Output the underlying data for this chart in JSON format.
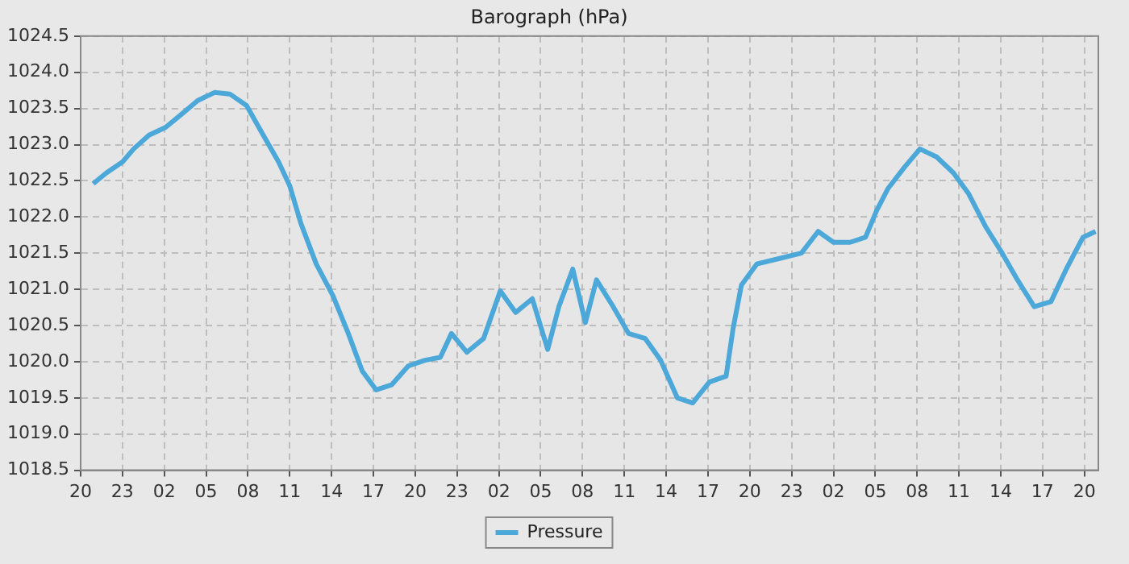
{
  "chart_data": {
    "type": "line",
    "title": "Barograph (hPa)",
    "legend": "bottom",
    "grid": true,
    "line_style": "solid",
    "marker": "none",
    "xlim": [
      "--01-01T20:00",
      "--01-04T21:00"
    ],
    "xticks": [
      {
        "value": "--01-01T20:00",
        "label": "20"
      },
      {
        "value": "--01-01T23:00",
        "label": "23"
      },
      {
        "value": "--01-02T02:00",
        "label": "02"
      },
      {
        "value": "--01-02T05:00",
        "label": "05"
      },
      {
        "value": "--01-02T08:00",
        "label": "08"
      },
      {
        "value": "--01-02T11:00",
        "label": "11"
      },
      {
        "value": "--01-02T14:00",
        "label": "14"
      },
      {
        "value": "--01-02T17:00",
        "label": "17"
      },
      {
        "value": "--01-02T20:00",
        "label": "20"
      },
      {
        "value": "--01-02T23:00",
        "label": "23"
      },
      {
        "value": "--01-03T02:00",
        "label": "02"
      },
      {
        "value": "--01-03T05:00",
        "label": "05"
      },
      {
        "value": "--01-03T08:00",
        "label": "08"
      },
      {
        "value": "--01-03T11:00",
        "label": "11"
      },
      {
        "value": "--01-03T14:00",
        "label": "14"
      },
      {
        "value": "--01-03T17:00",
        "label": "17"
      },
      {
        "value": "--01-03T20:00",
        "label": "20"
      },
      {
        "value": "--01-03T23:00",
        "label": "23"
      },
      {
        "value": "--01-04T02:00",
        "label": "02"
      },
      {
        "value": "--01-04T05:00",
        "label": "05"
      },
      {
        "value": "--01-04T08:00",
        "label": "08"
      },
      {
        "value": "--01-04T11:00",
        "label": "11"
      },
      {
        "value": "--01-04T14:00",
        "label": "14"
      },
      {
        "value": "--01-04T17:00",
        "label": "17"
      },
      {
        "value": "--01-04T20:00",
        "label": "20"
      }
    ],
    "ylim": [
      1018.5,
      1024.5
    ],
    "yticks": [
      1018.5,
      {
        "value": 1019,
        "label": "1019.0"
      },
      1019.5,
      {
        "value": 1020,
        "label": "1020.0"
      },
      1020.5,
      {
        "value": 1021,
        "label": "1021.0"
      },
      1021.5,
      {
        "value": 1022,
        "label": "1022.0"
      },
      1022.5,
      {
        "value": 1023,
        "label": "1023.0"
      },
      1023.5,
      {
        "value": 1024,
        "label": "1024.0"
      },
      1024.5
    ],
    "x": [
      "--01-01T20:54",
      "--01-01T21:51",
      "--01-01T23:00",
      "--01-01T23:48",
      "--01-02T00:54",
      "--01-02T02:06",
      "--01-02T03:18",
      "--01-02T04:24",
      "--01-02T05:36",
      "--01-02T06:42",
      "--01-02T07:54",
      "--01-02T09:06",
      "--01-02T10:12",
      "--01-02T11:00",
      "--01-02T11:48",
      "--01-02T12:54",
      "--01-02T14:06",
      "--01-02T15:12",
      "--01-02T16:12",
      "--01-02T17:12",
      "--01-02T18:18",
      "--01-02T19:30",
      "--01-02T20:42",
      "--01-02T21:48",
      "--01-02T22:36",
      "--01-02T23:42",
      "--01-03T00:54",
      "--01-03T02:06",
      "--01-03T03:12",
      "--01-03T04:24",
      "--01-03T05:30",
      "--01-03T06:18",
      "--01-03T07:18",
      "--01-03T08:12",
      "--01-03T09:00",
      "--01-03T10:12",
      "--01-03T11:18",
      "--01-03T12:30",
      "--01-03T13:36",
      "--01-03T14:48",
      "--01-03T15:54",
      "--01-03T17:06",
      "--01-03T18:18",
      "--01-03T18:48",
      "--01-03T19:24",
      "--01-03T20:30",
      "--01-03T22:12",
      "--01-03T23:42",
      "--01-04T00:54",
      "--01-04T02:00",
      "--01-04T03:12",
      "--01-04T04:18",
      "--01-04T05:06",
      "--01-04T05:54",
      "--01-04T07:06",
      "--01-04T08:12",
      "--01-04T09:24",
      "--01-04T10:36",
      "--01-04T11:42",
      "--01-04T12:54",
      "--01-04T14:06",
      "--01-04T15:12",
      "--01-04T16:24",
      "--01-04T17:36",
      "--01-04T18:42",
      "--01-04T19:54",
      "--01-04T20:48"
    ],
    "series": [
      {
        "name": "Pressure",
        "color": "#4ba8d8",
        "values": [
          1022.46,
          1022.61,
          1022.76,
          1022.94,
          1023.13,
          1023.24,
          1023.43,
          1023.61,
          1023.72,
          1023.7,
          1023.54,
          1023.13,
          1022.76,
          1022.43,
          1021.91,
          1021.35,
          1020.91,
          1020.39,
          1019.87,
          1019.61,
          1019.68,
          1019.94,
          1020.02,
          1020.06,
          1020.39,
          1020.13,
          1020.32,
          1020.98,
          1020.68,
          1020.87,
          1020.17,
          1020.76,
          1021.28,
          1020.54,
          1021.13,
          1020.76,
          1020.39,
          1020.32,
          1020.02,
          1019.5,
          1019.43,
          1019.72,
          1019.8,
          1020.46,
          1021.06,
          1021.35,
          1021.43,
          1021.5,
          1021.8,
          1021.65,
          1021.65,
          1021.72,
          1022.09,
          1022.39,
          1022.69,
          1022.94,
          1022.83,
          1022.61,
          1022.32,
          1021.87,
          1021.5,
          1021.13,
          1020.76,
          1020.83,
          1021.28,
          1021.72,
          1021.8
        ]
      }
    ]
  }
}
